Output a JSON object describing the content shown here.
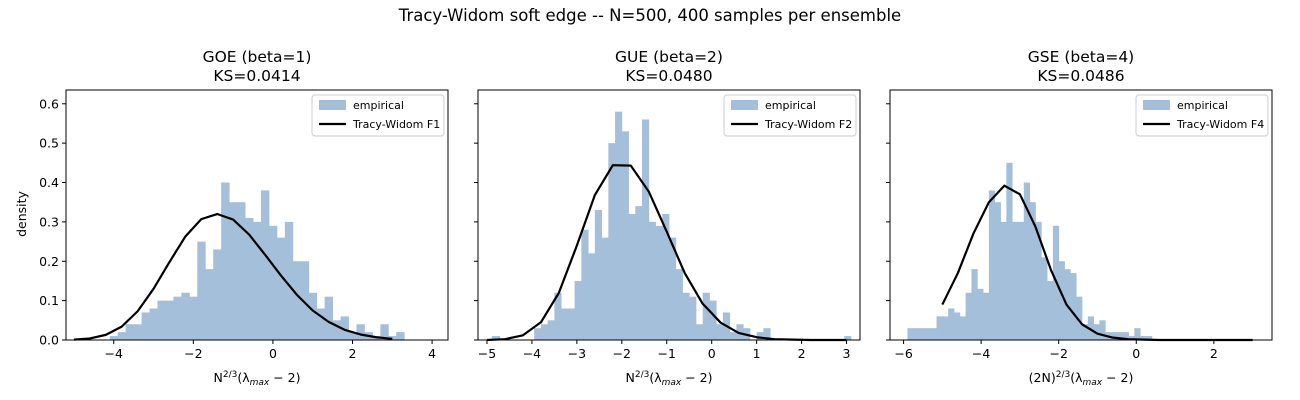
{
  "figure": {
    "suptitle": "Tracy-Widom soft edge -- N=500, 400 samples per ensemble",
    "ylabel": "density"
  },
  "colors": {
    "hist": "#a3bfd9",
    "curve": "#000000"
  },
  "chart_data": [
    {
      "type": "bar",
      "title": "GOE (beta=1)",
      "subtitle": "KS=0.0414",
      "xlabel": "N^{2/3}(λ_{max} − 2)",
      "xlim": [
        -5.2,
        4.4
      ],
      "ylim": [
        0,
        0.635
      ],
      "xticks": [
        -4,
        -2,
        0,
        2,
        4
      ],
      "yticks": [
        0,
        0.1,
        0.2,
        0.3,
        0.4,
        0.5,
        0.6
      ],
      "legend": {
        "position": "top-right",
        "hist_label": "empirical",
        "curve_label": "Tracy-Widom F1"
      },
      "histogram": {
        "name": "empirical",
        "bin_start": -4.1,
        "bin_width": 0.2,
        "values": [
          0.01,
          0.02,
          0.04,
          0.04,
          0.07,
          0.08,
          0.1,
          0.1,
          0.11,
          0.12,
          0.11,
          0.25,
          0.18,
          0.23,
          0.4,
          0.35,
          0.35,
          0.31,
          0.3,
          0.38,
          0.29,
          0.26,
          0.3,
          0.2,
          0.2,
          0.12,
          0.08,
          0.11,
          0.05,
          0.06,
          0.02,
          0.04,
          0.02,
          0.01,
          0.04,
          0.01,
          0.02,
          0.0,
          0.0,
          0.0,
          0.0,
          0.0,
          0.0,
          0.0,
          0.0,
          0.0,
          0.0,
          0.0,
          0.01,
          0.0
        ]
      },
      "curve": {
        "name": "Tracy-Widom F1",
        "x": [
          -5.0,
          -4.6,
          -4.2,
          -3.8,
          -3.4,
          -3.0,
          -2.6,
          -2.2,
          -1.8,
          -1.4,
          -1.0,
          -0.6,
          -0.2,
          0.2,
          0.6,
          1.0,
          1.4,
          1.8,
          2.2,
          2.6,
          3.0
        ],
        "y": [
          0.001,
          0.004,
          0.013,
          0.034,
          0.073,
          0.13,
          0.198,
          0.263,
          0.307,
          0.32,
          0.306,
          0.268,
          0.217,
          0.164,
          0.115,
          0.075,
          0.046,
          0.026,
          0.014,
          0.007,
          0.003
        ]
      }
    },
    {
      "type": "bar",
      "title": "GUE (beta=2)",
      "subtitle": "KS=0.0480",
      "xlabel": "N^{2/3}(λ_{max} − 2)",
      "xlim": [
        -5.2,
        3.3
      ],
      "ylim": [
        0,
        0.635
      ],
      "xticks": [
        -5,
        -4,
        -3,
        -2,
        -1,
        0,
        1,
        2,
        3
      ],
      "yticks": [
        0,
        0.1,
        0.2,
        0.3,
        0.4,
        0.5,
        0.6
      ],
      "legend": {
        "position": "top-right",
        "hist_label": "empirical",
        "curve_label": "Tracy-Widom F2"
      },
      "histogram": {
        "name": "empirical",
        "bin_start": -3.95,
        "bin_width": 0.15,
        "values": [
          0.03,
          0.04,
          0.05,
          0.12,
          0.08,
          0.08,
          0.15,
          0.28,
          0.22,
          0.33,
          0.26,
          0.5,
          0.58,
          0.53,
          0.32,
          0.34,
          0.56,
          0.3,
          0.29,
          0.32,
          0.26,
          0.18,
          0.12,
          0.11,
          0.04,
          0.12,
          0.1,
          0.04,
          0.07,
          0.02,
          0.04,
          0.03,
          0.0,
          0.02,
          0.03,
          0.0,
          0.0,
          0.0,
          0.0,
          0.0,
          0.0,
          0.0,
          0.0,
          0.0,
          0.0,
          0.0,
          0.01
        ]
      },
      "curve": {
        "name": "Tracy-Widom F2",
        "x": [
          -5.0,
          -4.6,
          -4.2,
          -3.8,
          -3.4,
          -3.0,
          -2.6,
          -2.2,
          -1.8,
          -1.4,
          -1.0,
          -0.6,
          -0.2,
          0.2,
          0.6,
          1.0,
          1.4,
          1.8,
          2.2,
          2.6,
          3.0
        ],
        "y": [
          0.0,
          0.002,
          0.012,
          0.045,
          0.12,
          0.24,
          0.368,
          0.444,
          0.443,
          0.377,
          0.275,
          0.17,
          0.092,
          0.044,
          0.018,
          0.007,
          0.002,
          0.001,
          0.0,
          0.0,
          0.0
        ]
      }
    },
    {
      "type": "bar",
      "title": "GSE (beta=4)",
      "subtitle": "KS=0.0486",
      "xlabel": "(2N)^{2/3}(λ_{max} − 2)",
      "xlim": [
        -6.35,
        3.5
      ],
      "ylim": [
        0,
        0.635
      ],
      "xticks": [
        -6,
        -4,
        -2,
        0,
        2
      ],
      "yticks": [
        0,
        0.1,
        0.2,
        0.3,
        0.4,
        0.5,
        0.6
      ],
      "legend": {
        "position": "top-right",
        "hist_label": "empirical",
        "curve_label": "Tracy-Widom F4"
      },
      "histogram": {
        "name": "empirical",
        "bin_start": -5.9,
        "bin_width": 0.15,
        "values": [
          0.03,
          0.03,
          0.03,
          0.03,
          0.03,
          0.06,
          0.06,
          0.08,
          0.07,
          0.06,
          0.12,
          0.18,
          0.13,
          0.12,
          0.38,
          0.35,
          0.3,
          0.45,
          0.3,
          0.3,
          0.4,
          0.35,
          0.3,
          0.21,
          0.15,
          0.29,
          0.2,
          0.18,
          0.17,
          0.11,
          0.04,
          0.06,
          0.04,
          0.05,
          0.02,
          0.02,
          0.02,
          0.02,
          0.01,
          0.03,
          0.01,
          0.01,
          0.0
        ]
      },
      "curve": {
        "name": "Tracy-Widom F4",
        "x": [
          -5.0,
          -4.6,
          -4.2,
          -3.8,
          -3.4,
          -3.0,
          -2.6,
          -2.2,
          -1.8,
          -1.4,
          -1.0,
          -0.6,
          -0.2,
          0.2,
          0.6,
          1.0,
          1.4,
          1.8,
          2.2,
          2.6,
          3.0
        ],
        "y": [
          0.09,
          0.17,
          0.27,
          0.35,
          0.392,
          0.37,
          0.288,
          0.178,
          0.09,
          0.04,
          0.016,
          0.006,
          0.002,
          0.001,
          0.0,
          0.0,
          0.0,
          0.0,
          0.0,
          0.0,
          0.0
        ]
      }
    }
  ]
}
